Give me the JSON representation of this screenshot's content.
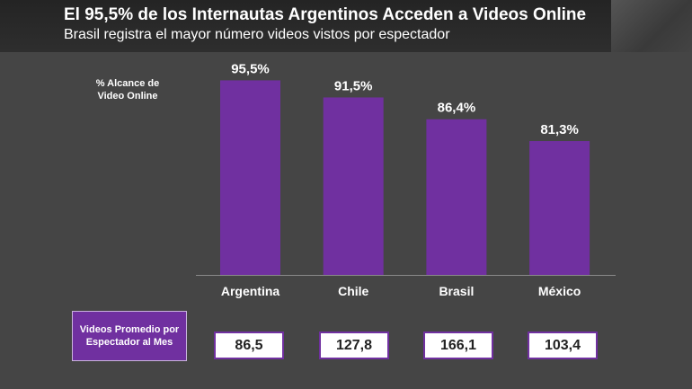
{
  "header": {
    "title": "El 95,5% de los Internautas Argentinos Acceden a Videos Online",
    "subtitle": "Brasil registra el mayor número videos vistos por  espectador"
  },
  "colors": {
    "bar": "#7030a0",
    "background": "#454545",
    "text": "#ffffff"
  },
  "chart_data": {
    "type": "bar",
    "title": "El 95,5% de los Internautas Argentinos Acceden a Videos Online",
    "subtitle": "Brasil registra el mayor número videos vistos por  espectador",
    "ylabel": "% Alcance de Video Online",
    "xlabel": "",
    "categories": [
      "Argentina",
      "Chile",
      "Brasil",
      "México"
    ],
    "values": [
      95.5,
      91.5,
      86.4,
      81.3
    ],
    "value_labels": [
      "95,5%",
      "91,5%",
      "86,4%",
      "81,3%"
    ],
    "ylim": [
      50,
      100
    ],
    "grid": false,
    "legend": "none"
  },
  "videos": {
    "label": "Videos Promedio por Espectador al Mes",
    "values": [
      "86,5",
      "127,8",
      "166,1",
      "103,4"
    ]
  }
}
